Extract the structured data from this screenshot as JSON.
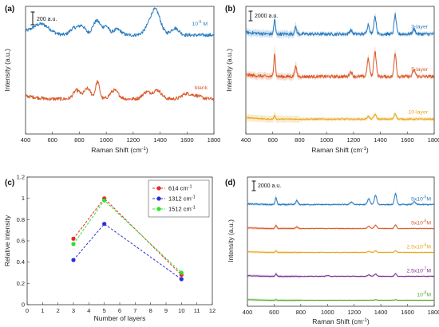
{
  "figure": {
    "panels": [
      {
        "label": "(a)",
        "xlabel": "Raman Shift (cm",
        "xlabel_sup": "-1",
        "xlabel_tail": ")",
        "ylabel": "Intensity (a.u.)",
        "scale_bar": "200 a.u."
      },
      {
        "label": "(b)",
        "xlabel": "Raman Shift (cm",
        "xlabel_sup": "-1",
        "xlabel_tail": ")",
        "ylabel": "Intensity (a.u.)",
        "scale_bar": "2000 a.u."
      },
      {
        "label": "(c)",
        "xlabel": "Number of layers",
        "xlabel_sup": "",
        "xlabel_tail": "",
        "ylabel": "Relative intensity",
        "scale_bar": ""
      },
      {
        "label": "(d)",
        "xlabel": "Raman Shift (cm",
        "xlabel_sup": "-1",
        "xlabel_tail": ")",
        "ylabel": "Intensity (a.u.)",
        "scale_bar": "2000 a.u."
      }
    ]
  },
  "chart_data": [
    {
      "type": "line",
      "panel": "(a)",
      "xlabel": "Raman Shift (cm-1)",
      "ylabel": "Intensity (a.u.)",
      "xlim": [
        400,
        1800
      ],
      "xticks": [
        400,
        600,
        800,
        1000,
        1200,
        1400,
        1600,
        1800
      ],
      "scale_bar": "200 a.u.",
      "series": [
        {
          "name": "10-5 M",
          "label_base": "10",
          "label_sup": "-5",
          "label_tail": " M",
          "color": "#2a7bbf",
          "offset": 1.0,
          "peaks": [
            [
              520,
              0.18,
              60
            ],
            [
              760,
              0.12,
              30
            ],
            [
              820,
              0.15,
              25
            ],
            [
              930,
              0.25,
              30
            ],
            [
              1000,
              0.14,
              20
            ],
            [
              1080,
              0.1,
              30
            ],
            [
              1330,
              0.15,
              40
            ],
            [
              1370,
              0.35,
              35
            ],
            [
              1510,
              0.12,
              30
            ]
          ],
          "noise": 0.03
        },
        {
          "name": "blank",
          "label_base": "blank",
          "label_sup": "",
          "label_tail": "",
          "color": "#d95a2b",
          "offset": 0.0,
          "peaks": [
            [
              780,
              0.15,
              25
            ],
            [
              860,
              0.18,
              25
            ],
            [
              935,
              0.3,
              15
            ],
            [
              1060,
              0.15,
              30
            ],
            [
              1300,
              0.12,
              30
            ],
            [
              1380,
              0.15,
              30
            ],
            [
              1590,
              0.08,
              30
            ],
            [
              1660,
              0.06,
              40
            ]
          ],
          "noise": 0.03
        }
      ]
    },
    {
      "type": "line",
      "panel": "(b)",
      "xlabel": "Raman Shift (cm-1)",
      "ylabel": "Intensity (a.u.)",
      "xlim": [
        400,
        1800
      ],
      "xticks": [
        400,
        600,
        800,
        1000,
        1200,
        1400,
        1600,
        1800
      ],
      "scale_bar": "2000 a.u.",
      "shaded": true,
      "series": [
        {
          "name": "3-layer",
          "label_base": "3-layer",
          "label_sup": "",
          "label_tail": "",
          "color": "#2a7bbf",
          "offset": 2.0,
          "peaks": [
            [
              614,
              0.45,
              6
            ],
            [
              770,
              0.2,
              8
            ],
            [
              1180,
              0.12,
              10
            ],
            [
              1310,
              0.3,
              9
            ],
            [
              1360,
              0.55,
              9
            ],
            [
              1510,
              0.6,
              8
            ],
            [
              1650,
              0.15,
              10
            ]
          ],
          "noise": 0.05
        },
        {
          "name": "5-layer",
          "label_base": "5-layer",
          "label_sup": "",
          "label_tail": "",
          "color": "#d95a2b",
          "offset": 1.0,
          "peaks": [
            [
              614,
              0.75,
              6
            ],
            [
              770,
              0.3,
              8
            ],
            [
              1180,
              0.15,
              10
            ],
            [
              1310,
              0.55,
              9
            ],
            [
              1360,
              0.8,
              9
            ],
            [
              1510,
              0.75,
              8
            ],
            [
              1650,
              0.2,
              10
            ]
          ],
          "noise": 0.05
        },
        {
          "name": "10-layer",
          "label_base": "10-layer",
          "label_sup": "",
          "label_tail": "",
          "color": "#e8a51c",
          "offset": 0.0,
          "peaks": [
            [
              614,
              0.1,
              6
            ],
            [
              1310,
              0.08,
              9
            ],
            [
              1360,
              0.15,
              9
            ],
            [
              1510,
              0.18,
              8
            ]
          ],
          "noise": 0.02
        }
      ]
    },
    {
      "type": "line",
      "panel": "(c)",
      "xlabel": "Number of layers",
      "ylabel": "Relative intensity",
      "xlim": [
        0,
        12
      ],
      "ylim": [
        0,
        1.2
      ],
      "xticks": [
        0,
        1,
        2,
        3,
        4,
        5,
        6,
        7,
        8,
        9,
        10,
        11,
        12
      ],
      "yticks": [
        0,
        0.2,
        0.4,
        0.6,
        0.8,
        1,
        1.2
      ],
      "legend": "top-right",
      "x": [
        3,
        5,
        10
      ],
      "series": [
        {
          "name": "614 cm-1",
          "label_base": "614 cm",
          "label_sup": "-1",
          "color": "#e8282b",
          "values": [
            0.62,
            1.0,
            0.28
          ]
        },
        {
          "name": "1312 cm-1",
          "label_base": "1312 cm",
          "label_sup": "-1",
          "color": "#2b2fd6",
          "values": [
            0.42,
            0.76,
            0.24
          ]
        },
        {
          "name": "1512 cm-1",
          "label_base": "1512 cm",
          "label_sup": "-1",
          "color": "#2ee02e",
          "values": [
            0.57,
            0.98,
            0.3
          ]
        }
      ]
    },
    {
      "type": "line",
      "panel": "(d)",
      "xlabel": "Raman Shift (cm-1)",
      "ylabel": "Intensity (a.u.)",
      "xlim": [
        400,
        1800
      ],
      "xticks": [
        400,
        600,
        800,
        1000,
        1200,
        1400,
        1600,
        1800
      ],
      "scale_bar": "2000 a.u.",
      "shaded": true,
      "series": [
        {
          "name": "5x10-5M",
          "label_base": "5x10",
          "label_sup": "-5",
          "label_tail": "M",
          "color": "#2a7bbf",
          "offset": 4.0,
          "peaks": [
            [
              614,
              0.55,
              6
            ],
            [
              770,
              0.3,
              8
            ],
            [
              1180,
              0.2,
              10
            ],
            [
              1310,
              0.45,
              9
            ],
            [
              1360,
              0.7,
              9
            ],
            [
              1510,
              0.85,
              8
            ],
            [
              1650,
              0.2,
              10
            ]
          ],
          "noise": 0.04
        },
        {
          "name": "5x10-6M",
          "label_base": "5x10",
          "label_sup": "-6",
          "label_tail": "M",
          "color": "#d95a2b",
          "offset": 3.0,
          "peaks": [
            [
              614,
              0.25,
              6
            ],
            [
              770,
              0.12,
              8
            ],
            [
              1310,
              0.18,
              9
            ],
            [
              1360,
              0.25,
              9
            ],
            [
              1510,
              0.28,
              8
            ]
          ],
          "noise": 0.02
        },
        {
          "name": "2.5x10-6M",
          "label_base": "2.5x10",
          "label_sup": "-6",
          "label_tail": "M",
          "color": "#e8a51c",
          "offset": 2.0,
          "peaks": [
            [
              614,
              0.12,
              6
            ],
            [
              1310,
              0.08,
              9
            ],
            [
              1360,
              0.12,
              9
            ],
            [
              1510,
              0.14,
              8
            ]
          ],
          "noise": 0.015
        },
        {
          "name": "2.5x10-7M",
          "label_base": "2.5x10",
          "label_sup": "-7",
          "label_tail": "M",
          "color": "#7b3294",
          "offset": 1.0,
          "peaks": [
            [
              614,
              0.2,
              6
            ],
            [
              1000,
              0.06,
              10
            ],
            [
              1310,
              0.12,
              9
            ],
            [
              1360,
              0.18,
              9
            ],
            [
              1510,
              0.2,
              8
            ]
          ],
          "noise": 0.02
        },
        {
          "name": "10-8M",
          "label_base": "10",
          "label_sup": "-8",
          "label_tail": "M",
          "color": "#5aa832",
          "offset": 0.0,
          "peaks": [
            [
              614,
              0.05,
              6
            ],
            [
              1360,
              0.04,
              9
            ],
            [
              1510,
              0.04,
              8
            ]
          ],
          "noise": 0.01
        }
      ]
    }
  ]
}
